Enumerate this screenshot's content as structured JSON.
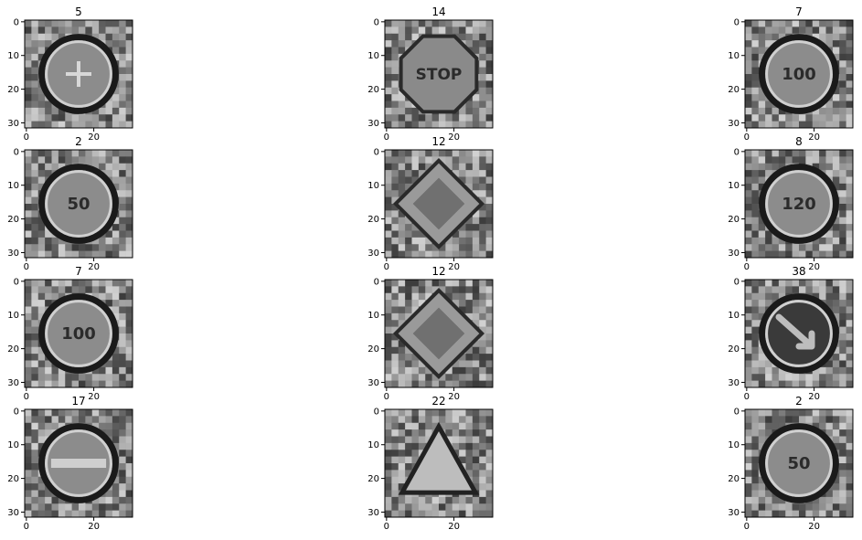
{
  "chart_data": [
    {
      "type": "image",
      "title": "5",
      "sign": "circle",
      "glyph": "arrow-cross",
      "ylim": [
        31,
        0
      ],
      "xticks": [
        0,
        20
      ],
      "yticks": [
        0,
        10,
        20,
        30
      ]
    },
    {
      "type": "image",
      "title": "14",
      "sign": "octagon",
      "glyph": "STOP",
      "ylim": [
        31,
        0
      ],
      "xticks": [
        0,
        20
      ],
      "yticks": [
        0,
        10,
        20,
        30
      ]
    },
    {
      "type": "image",
      "title": "7",
      "sign": "circle",
      "glyph": "100",
      "ylim": [
        31,
        0
      ],
      "xticks": [
        0,
        20
      ],
      "yticks": [
        0,
        10,
        20,
        30
      ]
    },
    {
      "type": "image",
      "title": "2",
      "sign": "circle",
      "glyph": "50",
      "ylim": [
        31,
        0
      ],
      "xticks": [
        0,
        20
      ],
      "yticks": [
        0,
        10,
        20,
        30
      ]
    },
    {
      "type": "image",
      "title": "12",
      "sign": "diamond",
      "glyph": "",
      "ylim": [
        31,
        0
      ],
      "xticks": [
        0,
        20
      ],
      "yticks": [
        0,
        10,
        20,
        30
      ]
    },
    {
      "type": "image",
      "title": "8",
      "sign": "circle",
      "glyph": "120",
      "ylim": [
        31,
        0
      ],
      "xticks": [
        0,
        20
      ],
      "yticks": [
        0,
        10,
        20,
        30
      ]
    },
    {
      "type": "image",
      "title": "7",
      "sign": "circle",
      "glyph": "100",
      "ylim": [
        31,
        0
      ],
      "xticks": [
        0,
        20
      ],
      "yticks": [
        0,
        10,
        20,
        30
      ]
    },
    {
      "type": "image",
      "title": "12",
      "sign": "diamond",
      "glyph": "",
      "ylim": [
        31,
        0
      ],
      "xticks": [
        0,
        20
      ],
      "yticks": [
        0,
        10,
        20,
        30
      ]
    },
    {
      "type": "image",
      "title": "38",
      "sign": "circle-filled",
      "glyph": "arrow",
      "ylim": [
        31,
        0
      ],
      "xticks": [
        0,
        20
      ],
      "yticks": [
        0,
        10,
        20,
        30
      ]
    },
    {
      "type": "image",
      "title": "17",
      "sign": "circle-bar",
      "glyph": "",
      "ylim": [
        31,
        0
      ],
      "xticks": [
        0,
        20
      ],
      "yticks": [
        0,
        10,
        20,
        30
      ]
    },
    {
      "type": "image",
      "title": "22",
      "sign": "triangle",
      "glyph": "",
      "ylim": [
        31,
        0
      ],
      "xticks": [
        0,
        20
      ],
      "yticks": [
        0,
        10,
        20,
        30
      ]
    },
    {
      "type": "image",
      "title": "2",
      "sign": "circle",
      "glyph": "50",
      "ylim": [
        31,
        0
      ],
      "xticks": [
        0,
        20
      ],
      "yticks": [
        0,
        10,
        20,
        30
      ]
    }
  ],
  "colors": {
    "text": "#000000",
    "axis": "#000000",
    "background": "#ffffff"
  }
}
